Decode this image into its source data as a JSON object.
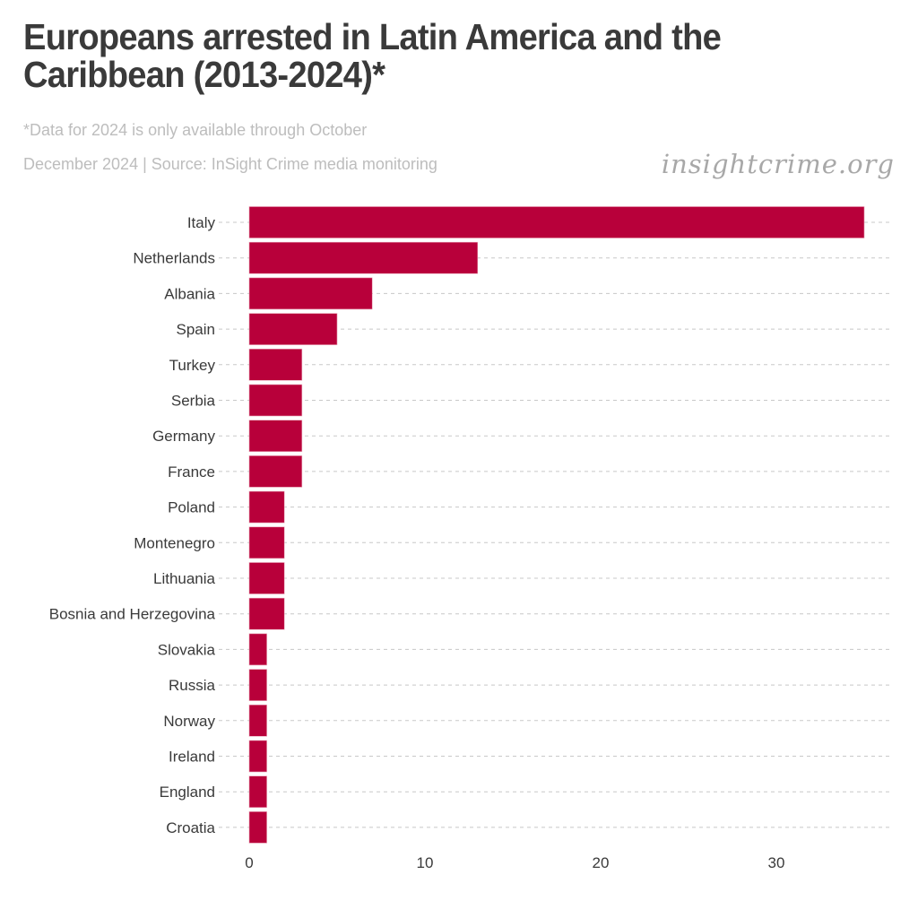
{
  "header": {
    "title": "Europeans arrested in Latin America and the Caribbean (2013-2024)*",
    "note": "*Data for 2024 is only available through October",
    "source": "December 2024 | Source: InSight Crime media monitoring",
    "brand": "insightcrime.org"
  },
  "colors": {
    "bar": "#b8003a",
    "grid": "#c8c8c8",
    "text": "#3a3a3a"
  },
  "chart_data": {
    "type": "bar",
    "orientation": "horizontal",
    "title": "Europeans arrested in Latin America and the Caribbean (2013-2024)*",
    "xlabel": "",
    "ylabel": "",
    "categories": [
      "Italy",
      "Netherlands",
      "Albania",
      "Spain",
      "Turkey",
      "Serbia",
      "Germany",
      "France",
      "Poland",
      "Montenegro",
      "Lithuania",
      "Bosnia and Herzegovina",
      "Slovakia",
      "Russia",
      "Norway",
      "Ireland",
      "England",
      "Croatia"
    ],
    "values": [
      35,
      13,
      7,
      5,
      3,
      3,
      3,
      3,
      2,
      2,
      2,
      2,
      1,
      1,
      1,
      1,
      1,
      1
    ],
    "xlim": [
      0,
      36.5
    ],
    "xticks": [
      0,
      10,
      20,
      30
    ],
    "xtick_labels": [
      "0",
      "10",
      "20",
      "30"
    ],
    "grid": "horizontal dashed",
    "legend": "none"
  }
}
